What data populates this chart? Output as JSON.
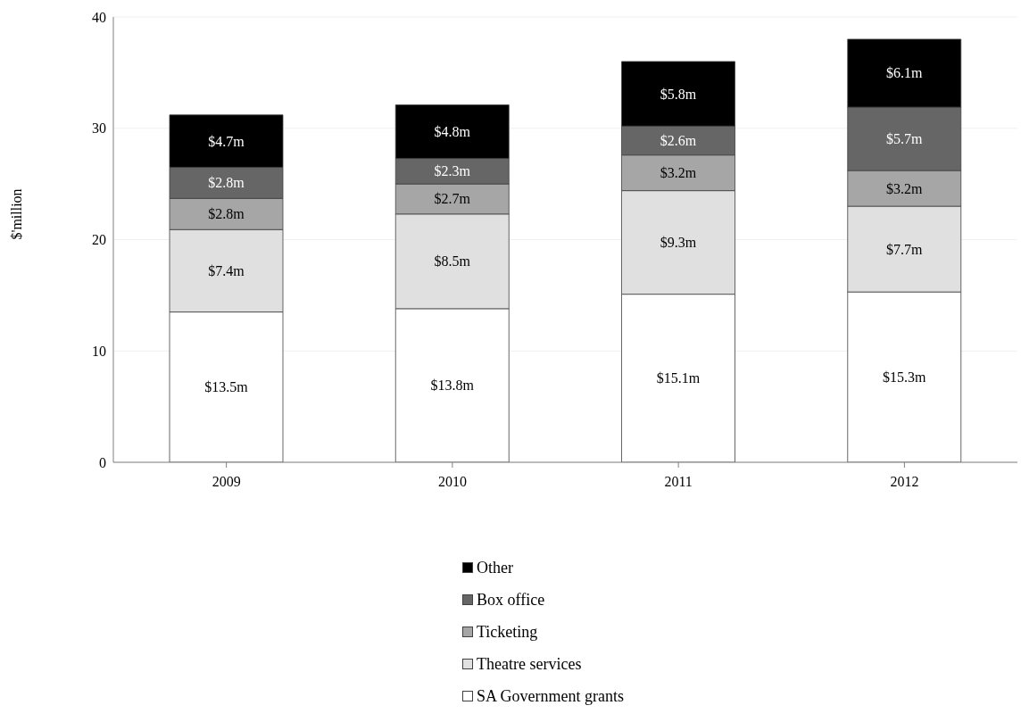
{
  "chart_data": {
    "type": "bar",
    "stacked": true,
    "ylabel": "$'million",
    "categories": [
      "2009",
      "2010",
      "2011",
      "2012"
    ],
    "series": [
      {
        "name": "SA Government grants",
        "color": "#ffffff",
        "values": [
          13.5,
          13.8,
          15.1,
          15.3
        ],
        "value_labels": [
          "$13.5m",
          "$13.8m",
          "$15.1m",
          "$15.3m"
        ]
      },
      {
        "name": "Theatre services",
        "color": "#e0e0e0",
        "values": [
          7.4,
          8.5,
          9.3,
          7.7
        ],
        "value_labels": [
          "$7.4m",
          "$8.5m",
          "$9.3m",
          "$7.7m"
        ]
      },
      {
        "name": "Ticketing",
        "color": "#a6a6a6",
        "values": [
          2.8,
          2.7,
          3.2,
          3.2
        ],
        "value_labels": [
          "$2.8m",
          "$2.7m",
          "$3.2m",
          "$3.2m"
        ]
      },
      {
        "name": "Box office",
        "color": "#666666",
        "values": [
          2.8,
          2.3,
          2.6,
          5.7
        ],
        "value_labels": [
          "$2.8m",
          "$2.3m",
          "$2.6m",
          "$5.7m"
        ]
      },
      {
        "name": "Other",
        "color": "#000000",
        "values": [
          4.7,
          4.8,
          5.8,
          6.1
        ],
        "value_labels": [
          "$4.7m",
          "$4.8m",
          "$5.8m",
          "$6.1m"
        ]
      }
    ],
    "ylim": [
      0,
      40
    ],
    "yticks": [
      0,
      10,
      20,
      30,
      40
    ],
    "grid": "y",
    "legend": "bottom"
  }
}
